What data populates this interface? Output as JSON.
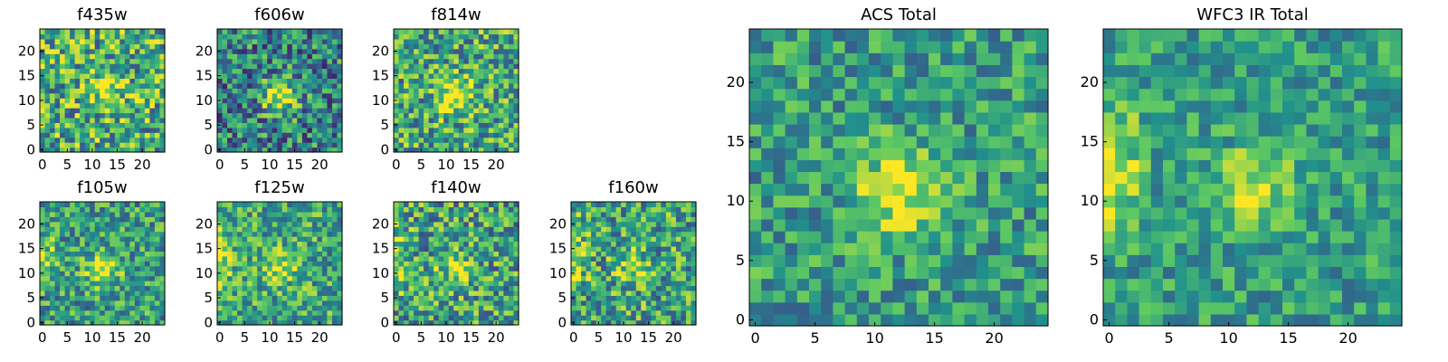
{
  "chart_data": [
    {
      "type": "heatmap",
      "title": "f435w",
      "xticks": [
        0,
        5,
        10,
        15,
        20
      ],
      "yticks": [
        0,
        5,
        10,
        15,
        20
      ],
      "xlim": [
        0,
        25
      ],
      "ylim": [
        0,
        25
      ],
      "grid": "off",
      "colormap": "viridis",
      "source_peak": [
        13,
        13
      ],
      "source_strength": 0.35,
      "background": 0.62,
      "noise": 0.38,
      "seed": 11
    },
    {
      "type": "heatmap",
      "title": "f606w",
      "xticks": [
        0,
        5,
        10,
        15,
        20
      ],
      "yticks": [
        0,
        5,
        10,
        15,
        20
      ],
      "xlim": [
        0,
        25
      ],
      "ylim": [
        0,
        25
      ],
      "grid": "off",
      "colormap": "viridis",
      "source_peak": [
        12,
        11
      ],
      "source_strength": 0.55,
      "background": 0.45,
      "noise": 0.35,
      "seed": 23
    },
    {
      "type": "heatmap",
      "title": "f814w",
      "xticks": [
        0,
        5,
        10,
        15,
        20
      ],
      "yticks": [
        0,
        5,
        10,
        15,
        20
      ],
      "xlim": [
        0,
        25
      ],
      "ylim": [
        0,
        25
      ],
      "grid": "off",
      "colormap": "viridis",
      "source_peak": [
        12,
        11
      ],
      "source_strength": 0.45,
      "background": 0.6,
      "noise": 0.35,
      "seed": 37
    },
    {
      "type": "heatmap",
      "title": "f105w",
      "xticks": [
        0,
        5,
        10,
        15,
        20
      ],
      "yticks": [
        0,
        5,
        10,
        15,
        20
      ],
      "xlim": [
        0,
        25
      ],
      "ylim": [
        0,
        25
      ],
      "grid": "off",
      "colormap": "viridis",
      "source_peak": [
        12,
        11
      ],
      "source_strength": 0.4,
      "background": 0.55,
      "noise": 0.3,
      "edge_glow": 0.3,
      "seed": 41
    },
    {
      "type": "heatmap",
      "title": "f125w",
      "xticks": [
        0,
        5,
        10,
        15,
        20
      ],
      "yticks": [
        0,
        5,
        10,
        15,
        20
      ],
      "xlim": [
        0,
        25
      ],
      "ylim": [
        0,
        25
      ],
      "grid": "off",
      "colormap": "viridis",
      "source_peak": [
        12,
        11
      ],
      "source_strength": 0.3,
      "background": 0.6,
      "noise": 0.3,
      "edge_glow": 0.35,
      "seed": 53
    },
    {
      "type": "heatmap",
      "title": "f140w",
      "xticks": [
        0,
        5,
        10,
        15,
        20
      ],
      "yticks": [
        0,
        5,
        10,
        15,
        20
      ],
      "xlim": [
        0,
        25
      ],
      "ylim": [
        0,
        25
      ],
      "grid": "off",
      "colormap": "viridis",
      "source_peak": [
        12,
        11
      ],
      "source_strength": 0.3,
      "background": 0.58,
      "noise": 0.35,
      "edge_glow": 0.35,
      "seed": 67
    },
    {
      "type": "heatmap",
      "title": "f160w",
      "xticks": [
        0,
        5,
        10,
        15,
        20
      ],
      "yticks": [
        0,
        5,
        10,
        15,
        20
      ],
      "xlim": [
        0,
        25
      ],
      "ylim": [
        0,
        25
      ],
      "grid": "off",
      "colormap": "viridis",
      "source_peak": [
        12,
        11
      ],
      "source_strength": 0.3,
      "background": 0.58,
      "noise": 0.35,
      "edge_glow": 0.4,
      "seed": 79
    },
    {
      "type": "heatmap",
      "title": "ACS Total",
      "xticks": [
        0,
        5,
        10,
        15,
        20
      ],
      "yticks": [
        0,
        5,
        10,
        15,
        20
      ],
      "xlim": [
        0,
        25
      ],
      "ylim": [
        0,
        25
      ],
      "grid": "off",
      "colormap": "viridis",
      "source_peak": [
        12,
        11
      ],
      "source_strength": 0.45,
      "background": 0.55,
      "noise": 0.25,
      "seed": 97
    },
    {
      "type": "heatmap",
      "title": "WFC3 IR Total",
      "xticks": [
        0,
        5,
        10,
        15,
        20
      ],
      "yticks": [
        0,
        5,
        10,
        15,
        20
      ],
      "xlim": [
        0,
        25
      ],
      "ylim": [
        0,
        25
      ],
      "grid": "off",
      "colormap": "viridis",
      "source_peak": [
        12,
        11
      ],
      "source_strength": 0.35,
      "background": 0.55,
      "noise": 0.22,
      "edge_glow": 0.45,
      "seed": 113
    }
  ],
  "colors": {
    "viridis_stops": [
      "#440154",
      "#3b528b",
      "#21918c",
      "#5ec962",
      "#fde725"
    ]
  }
}
